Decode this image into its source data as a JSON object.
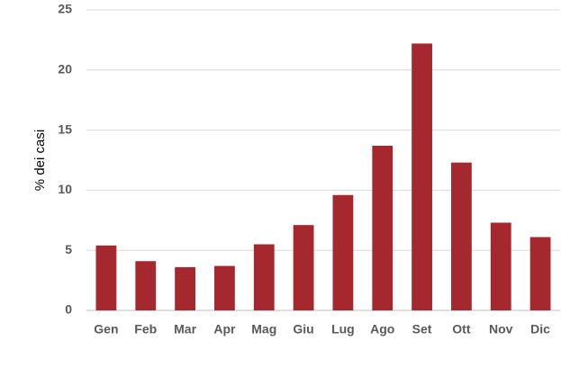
{
  "chart_data": {
    "type": "bar",
    "y_label": "% dei casi",
    "categories": [
      "Gen",
      "Feb",
      "Mar",
      "Apr",
      "Mag",
      "Giu",
      "Lug",
      "Ago",
      "Set",
      "Ott",
      "Nov",
      "Dic"
    ],
    "values": [
      5.4,
      4.1,
      3.6,
      3.7,
      5.5,
      7.1,
      9.6,
      13.7,
      22.2,
      12.3,
      7.3,
      6.1
    ],
    "color": "#a4282d",
    "ylim": [
      0,
      25
    ],
    "yticks": [
      0,
      5,
      10,
      15,
      20,
      25
    ],
    "grid": true
  }
}
